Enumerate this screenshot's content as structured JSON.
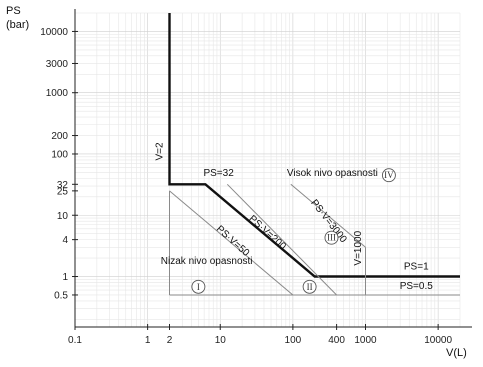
{
  "chart_data": {
    "type": "line",
    "x_scale": "log",
    "y_scale": "log",
    "xlabel": "V(L)",
    "ylabel": "PS",
    "ylabel_unit": "(bar)",
    "xlim": [
      0.1,
      20000
    ],
    "ylim": [
      0.15,
      20000
    ],
    "xticks": [
      {
        "value": 0.1,
        "label": "0.1"
      },
      {
        "value": 1,
        "label": "1"
      },
      {
        "value": 2,
        "label": "2"
      },
      {
        "value": 10,
        "label": "10"
      },
      {
        "value": 100,
        "label": "100"
      },
      {
        "value": 400,
        "label": "400"
      },
      {
        "value": 1000,
        "label": "1000"
      },
      {
        "value": 10000,
        "label": "10000"
      }
    ],
    "yticks": [
      {
        "value": 10000,
        "label": "10000"
      },
      {
        "value": 3000,
        "label": "3000"
      },
      {
        "value": 1000,
        "label": "1000"
      },
      {
        "value": 200,
        "label": "200"
      },
      {
        "value": 100,
        "label": "100"
      },
      {
        "value": 32,
        "label": "32"
      },
      {
        "value": 25,
        "label": "25"
      },
      {
        "value": 10,
        "label": "10"
      },
      {
        "value": 4,
        "label": "4"
      },
      {
        "value": 1,
        "label": "1"
      },
      {
        "value": 0.5,
        "label": "0.5"
      }
    ],
    "grid": true,
    "series": [
      {
        "style": "bold",
        "points": [
          [
            2,
            20000
          ],
          [
            2,
            32
          ],
          [
            6.25,
            32
          ],
          [
            200,
            1
          ],
          [
            20000,
            1
          ]
        ]
      },
      {
        "style": "thin",
        "points": [
          [
            2,
            25
          ],
          [
            2,
            0.5
          ]
        ]
      },
      {
        "style": "thin",
        "points": [
          [
            2,
            25
          ],
          [
            100,
            0.5
          ]
        ]
      },
      {
        "style": "thin",
        "points": [
          [
            12.5,
            32
          ],
          [
            400,
            0.5
          ]
        ]
      },
      {
        "style": "thin",
        "points": [
          [
            93.75,
            32
          ],
          [
            1000,
            3
          ]
        ]
      },
      {
        "style": "thin",
        "points": [
          [
            1000,
            3
          ],
          [
            1000,
            0.5
          ]
        ]
      },
      {
        "style": "thin",
        "points": [
          [
            2,
            0.5
          ],
          [
            20000,
            0.5
          ]
        ]
      }
    ],
    "annotations": [
      {
        "text": "V=2",
        "x": 1.6,
        "y": 110,
        "rotate": -90
      },
      {
        "text": "PS=32",
        "x": 9.5,
        "y": 44
      },
      {
        "text": "Visok nivo opasnosti",
        "x": 350,
        "y": 44
      },
      {
        "text": "PS·V=3000",
        "x": 290,
        "y": 7.5,
        "rotate": 52
      },
      {
        "text": "PS·V=200",
        "x": 42,
        "y": 4.8,
        "rotate": 42
      },
      {
        "text": "PS·V=50",
        "x": 14,
        "y": 3.5,
        "rotate": 42
      },
      {
        "text": "V=1000",
        "x": 860,
        "y": 2.9,
        "rotate": -90
      },
      {
        "text": "PS=1",
        "x": 5000,
        "y": 1.3
      },
      {
        "text": "Nizak nivo opasnosti",
        "x": 6.5,
        "y": 1.6
      },
      {
        "text": "PS=0.5",
        "x": 5000,
        "y": 0.63
      }
    ],
    "zones": [
      {
        "label": "I",
        "x": 5,
        "y": 0.68
      },
      {
        "label": "II",
        "x": 170,
        "y": 0.68
      },
      {
        "label": "III",
        "x": 340,
        "y": 4.3
      },
      {
        "label": "IV",
        "x": 2100,
        "y": 45
      }
    ]
  }
}
